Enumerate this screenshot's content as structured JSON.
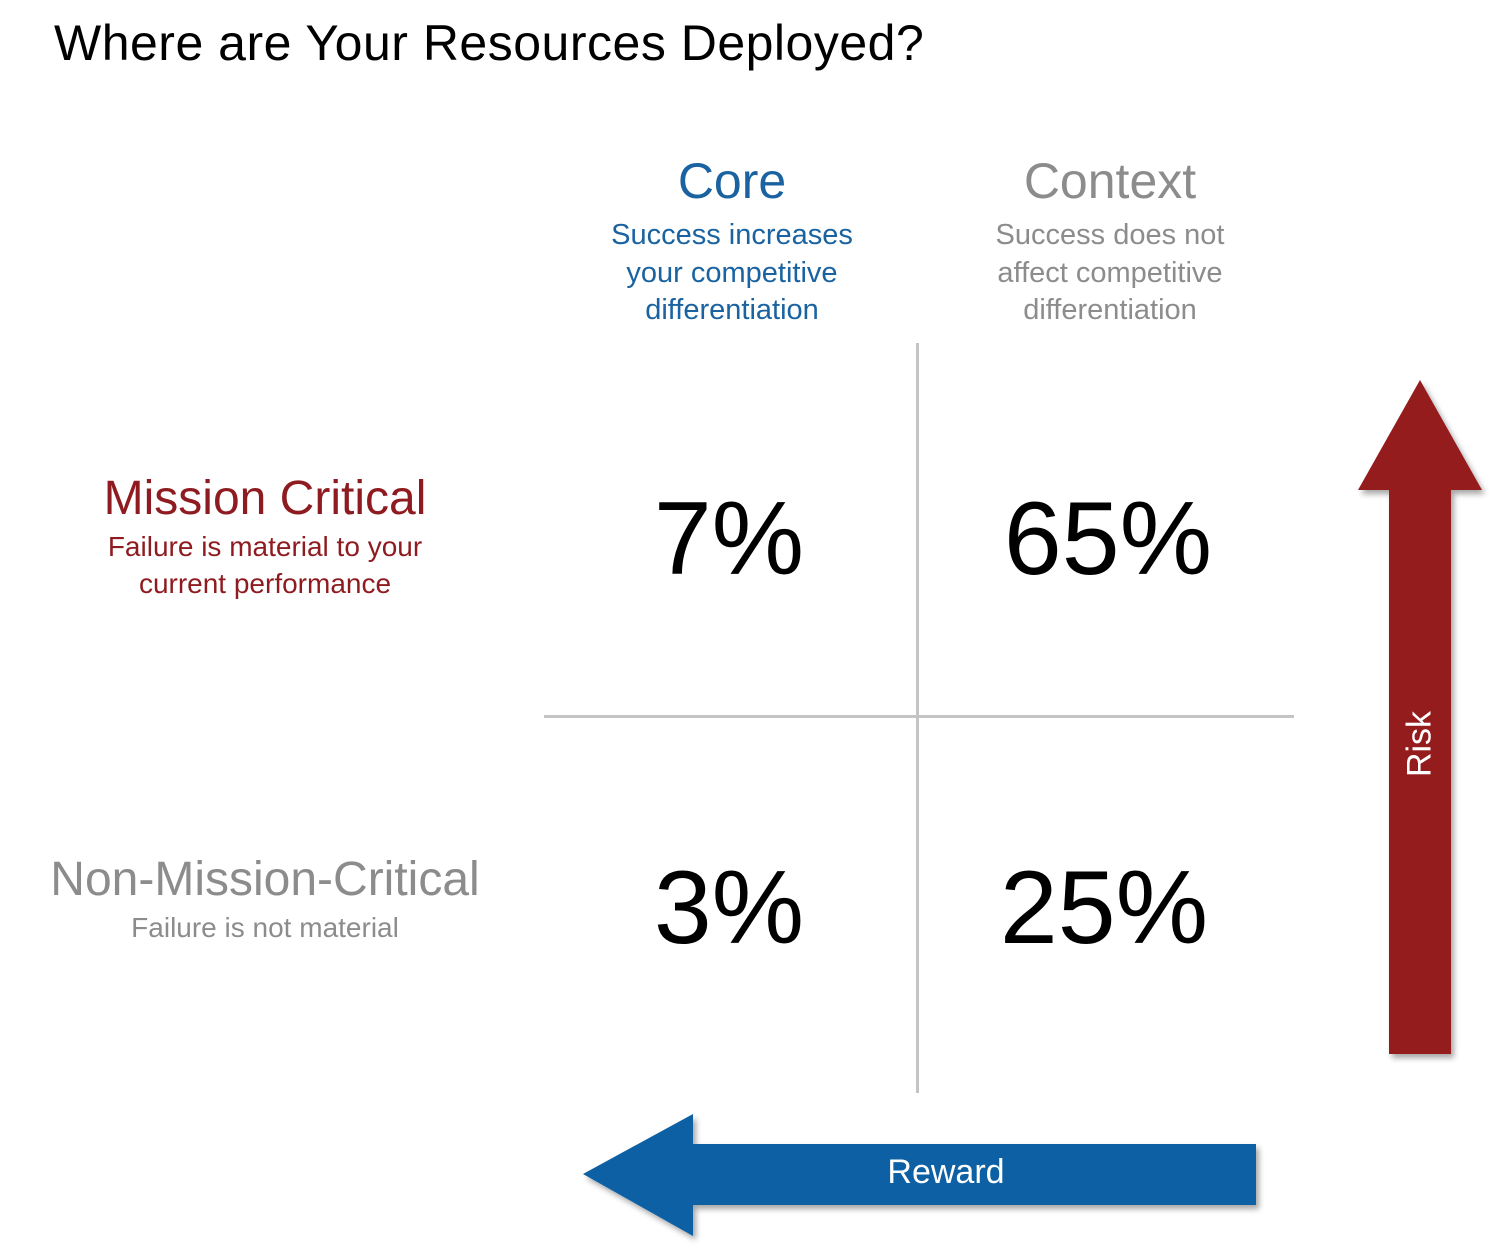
{
  "title": "Where are Your Resources Deployed?",
  "colors": {
    "core": "#1a63a0",
    "context": "#8c8c8c",
    "mission_critical": "#8e1b1f",
    "non_mission_critical": "#8c8c8c",
    "risk_arrow": "#941b1d",
    "reward_arrow": "#0e60a3",
    "grid": "#c4c4c4"
  },
  "columns": {
    "core": {
      "heading": "Core",
      "sub": [
        "Success increases",
        "your competitive",
        "differentiation"
      ]
    },
    "context": {
      "heading": "Context",
      "sub": [
        "Success does not",
        "affect competitive",
        "differentiation"
      ]
    }
  },
  "rows": {
    "mission_critical": {
      "heading": "Mission Critical",
      "sub": [
        "Failure is material to your",
        "current performance"
      ]
    },
    "non_mission_critical": {
      "heading": "Non-Mission-Critical",
      "sub": [
        "Failure is not material"
      ]
    }
  },
  "cells": {
    "mission_critical_core": "7%",
    "mission_critical_context": "65%",
    "non_mission_critical_core": "3%",
    "non_mission_critical_context": "25%"
  },
  "arrows": {
    "risk": {
      "label": "Risk",
      "direction": "up"
    },
    "reward": {
      "label": "Reward",
      "direction": "left"
    }
  }
}
